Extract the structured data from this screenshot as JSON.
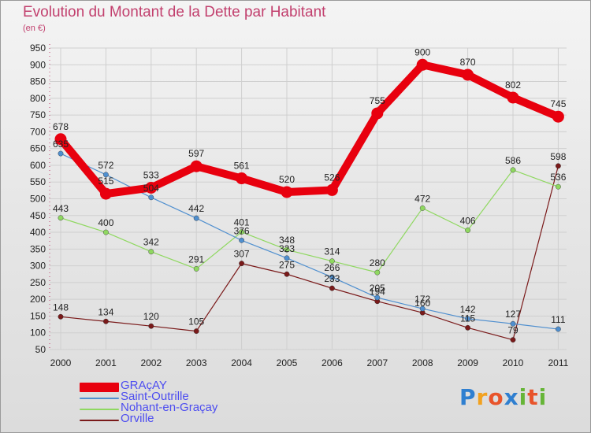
{
  "header": {
    "title": "Evolution du Montant de la Dette par Habitant",
    "subtitle": "(en €)"
  },
  "logo": {
    "text": "Proxiti",
    "letters": [
      "P",
      "r",
      "o",
      "x",
      "i",
      "t",
      "i"
    ]
  },
  "chart_data": {
    "type": "line",
    "title": "Evolution du Montant de la Dette par Habitant",
    "subtitle": "(en €)",
    "xlabel": "",
    "ylabel": "",
    "x": [
      2000,
      2001,
      2002,
      2003,
      2004,
      2005,
      2006,
      2007,
      2008,
      2009,
      2010,
      2011
    ],
    "ylim": [
      50,
      950
    ],
    "yticks": [
      50,
      100,
      150,
      200,
      250,
      300,
      350,
      400,
      450,
      500,
      550,
      600,
      650,
      700,
      750,
      800,
      850,
      900,
      950
    ],
    "grid": true,
    "legend_position": "bottom-left",
    "series": [
      {
        "name": "GRAçAY",
        "color": "#e8000e",
        "values": [
          678,
          515,
          533,
          597,
          561,
          520,
          526,
          755,
          900,
          870,
          802,
          745
        ]
      },
      {
        "name": "Saint-Outrille",
        "color": "#4f8fcf",
        "values": [
          635,
          572,
          504,
          442,
          376,
          323,
          266,
          205,
          172,
          142,
          127,
          111
        ]
      },
      {
        "name": "Nohant-en-Graçay",
        "color": "#8fd860",
        "values": [
          443,
          400,
          342,
          291,
          401,
          348,
          314,
          280,
          472,
          406,
          586,
          536
        ]
      },
      {
        "name": "Orville",
        "color": "#7a1a1a",
        "values": [
          148,
          134,
          120,
          105,
          307,
          275,
          233,
          194,
          160,
          115,
          79,
          598
        ]
      }
    ]
  }
}
